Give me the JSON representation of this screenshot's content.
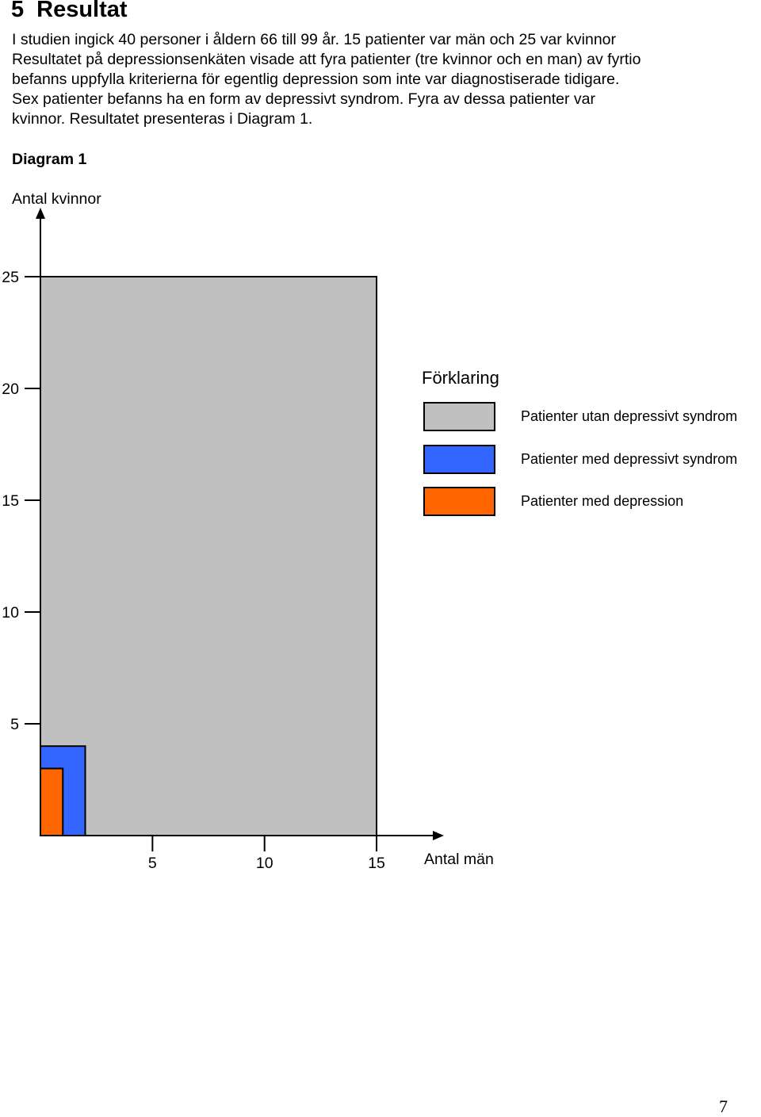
{
  "section": {
    "number": "5",
    "title": "Resultat"
  },
  "paragraph_lines": [
    "I studien ingick 40 personer i åldern 66 till 99 år. 15 patienter var män och 25 var kvinnor",
    "Resultatet på depressionsenkäten visade att fyra patienter (tre kvinnor och en man) av fyrtio",
    "befanns uppfylla kriterierna för egentlig depression som inte var diagnostiserade tidigare.",
    "Sex patienter befanns ha en form av depressivt syndrom. Fyra av dessa patienter var",
    "kvinnor. Resultatet presenteras i Diagram 1."
  ],
  "diagram_title": "Diagram 1",
  "y_axis_title": "Antal kvinnor",
  "x_axis_title": "Antal män",
  "page_number": "7",
  "chart_data": {
    "type": "nested-rectangles",
    "xlabel": "Antal män",
    "ylabel": "Antal kvinnor",
    "xlim": [
      0,
      15
    ],
    "ylim": [
      0,
      25
    ],
    "x_ticks": [
      5,
      10,
      15
    ],
    "y_ticks": [
      5,
      10,
      15,
      20,
      25
    ],
    "legend_title": "Förklaring",
    "legend_position": "right",
    "series": [
      {
        "name": "Patienter utan depressivt syndrom",
        "color": "#c0c0c0",
        "men": 15,
        "women": 25
      },
      {
        "name": "Patienter med depressivt syndrom",
        "color": "#3366ff",
        "men": 2,
        "women": 4
      },
      {
        "name": "Patienter med depression",
        "color": "#ff6600",
        "men": 1,
        "women": 3
      }
    ]
  }
}
